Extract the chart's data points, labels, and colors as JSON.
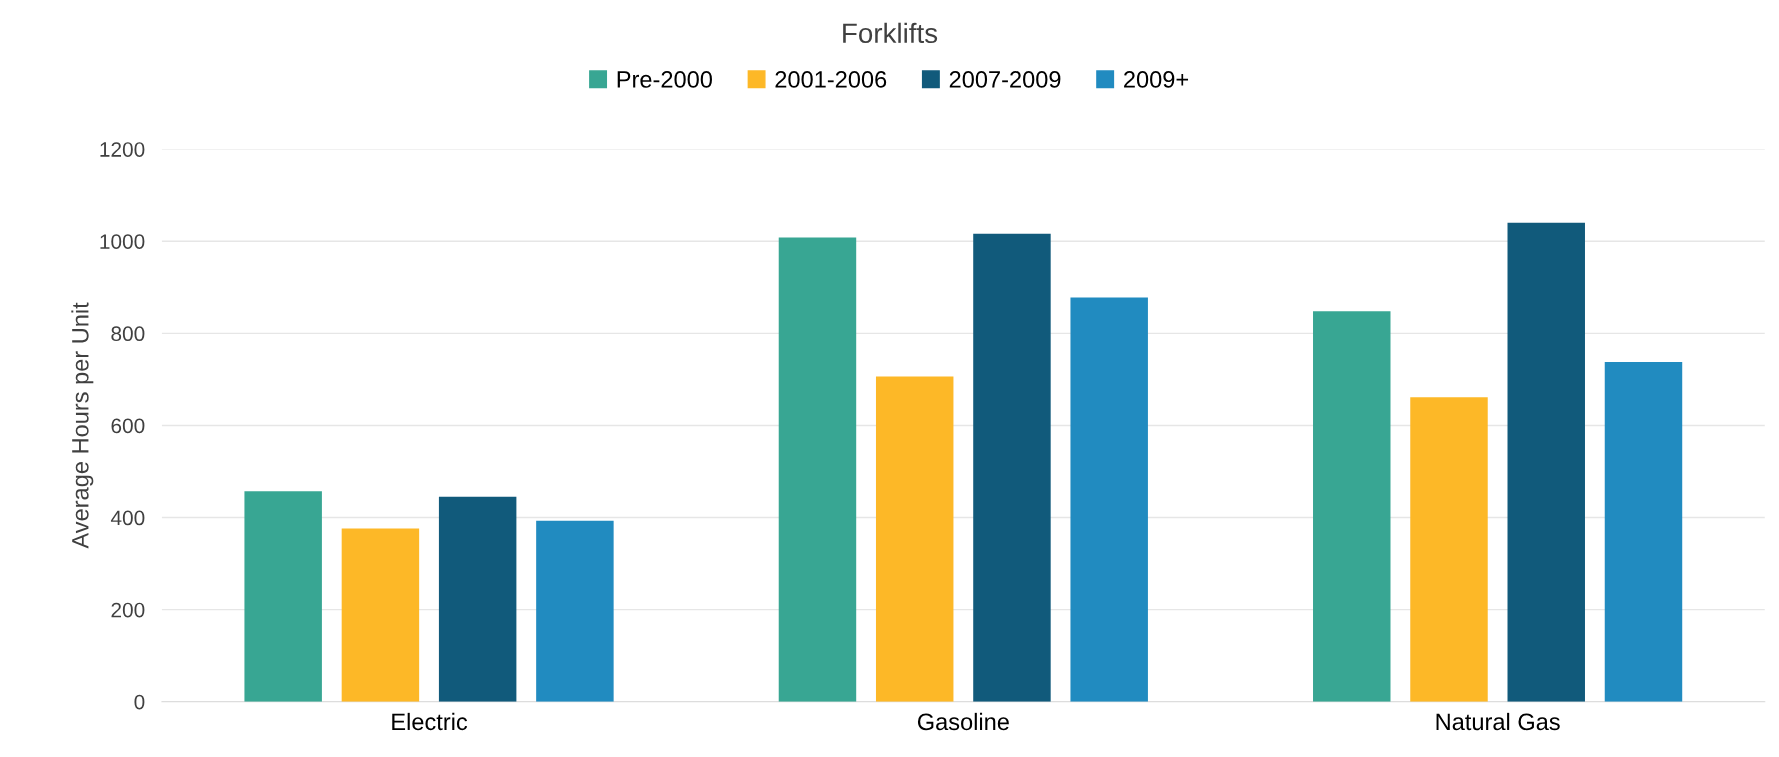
{
  "chart_data": {
    "type": "bar",
    "title": "Forklifts",
    "ylabel": "Average Hours per Unit",
    "categories": [
      "Electric",
      "Gasoline",
      "Natural Gas"
    ],
    "series": [
      {
        "name": "Pre-2000",
        "color": "#38a693",
        "values": [
          457,
          1008,
          848
        ]
      },
      {
        "name": "2001-2006",
        "color": "#fdb827",
        "values": [
          376,
          706,
          661
        ]
      },
      {
        "name": "2007-2009",
        "color": "#115a7b",
        "values": [
          445,
          1016,
          1040
        ]
      },
      {
        "name": "2009+",
        "color": "#218bc0",
        "values": [
          393,
          878,
          738
        ]
      }
    ],
    "ylim": [
      0,
      1200
    ],
    "yticks": [
      0,
      200,
      400,
      600,
      800,
      1000,
      1200
    ],
    "grid": "y",
    "legend": "top"
  }
}
